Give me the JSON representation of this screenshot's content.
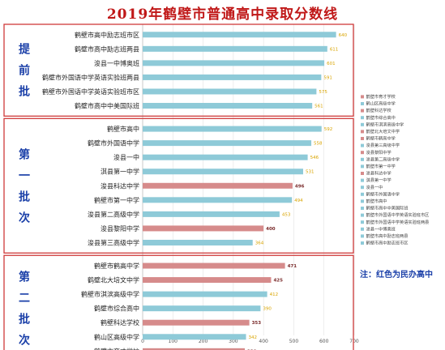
{
  "title": "2019年鹤壁市普通高中录取分数线",
  "note": "注：红色为民办高中",
  "colors": {
    "public": "#8ecad8",
    "private": "#d68b8b",
    "frame": "#d03a3a",
    "group_text": "#1a3fa8",
    "title": "#c01818"
  },
  "groups": [
    {
      "label": "提前批",
      "chars": [
        "提",
        "前",
        "批"
      ]
    },
    {
      "label": "第一批次",
      "chars": [
        "第",
        "一",
        "批",
        "次"
      ]
    },
    {
      "label": "第二批次",
      "chars": [
        "第",
        "二",
        "批",
        "次"
      ]
    }
  ],
  "chart_data": {
    "type": "bar",
    "orientation": "horizontal",
    "xlim": [
      0,
      700
    ],
    "xticks": [
      "0",
      "100",
      "200",
      "300",
      "400",
      "500",
      "600",
      "700"
    ],
    "bars": [
      {
        "group": 0,
        "category": "鹤壁市高中励志班市区",
        "value": 640,
        "private": false
      },
      {
        "group": 0,
        "category": "鹤壁市高中励志班两县",
        "value": 611,
        "private": false
      },
      {
        "group": 0,
        "category": "浚县一中博奥班",
        "value": 601,
        "private": false
      },
      {
        "group": 0,
        "category": "鹤壁市外国语中学英语实验班两县",
        "value": 591,
        "private": false
      },
      {
        "group": 0,
        "category": "鹤壁市外国语中学英语实验班市区",
        "value": 575,
        "private": false
      },
      {
        "group": 0,
        "category": "鹤壁市高中中美国际班",
        "value": 561,
        "private": false
      },
      {
        "group": 1,
        "category": "鹤壁市高中",
        "value": 592,
        "private": false
      },
      {
        "group": 1,
        "category": "鹤壁市外国语中学",
        "value": 558,
        "private": false
      },
      {
        "group": 1,
        "category": "浚县一中",
        "value": 546,
        "private": false
      },
      {
        "group": 1,
        "category": "淇县第一中学",
        "value": 531,
        "private": false
      },
      {
        "group": 1,
        "category": "浚县科达中学",
        "value": 496,
        "private": true
      },
      {
        "group": 1,
        "category": "鹤壁市第一中学",
        "value": 494,
        "private": false
      },
      {
        "group": 1,
        "category": "浚县第二高级中学",
        "value": 453,
        "private": false
      },
      {
        "group": 1,
        "category": "浚县黎阳中学",
        "value": 400,
        "private": true
      },
      {
        "group": 1,
        "category": "浚县第三高级中学",
        "value": 364,
        "private": false
      },
      {
        "group": 2,
        "category": "鹤壁市鹤高中学",
        "value": 471,
        "private": true
      },
      {
        "group": 2,
        "category": "鹤壁北大培文中学",
        "value": 425,
        "private": true
      },
      {
        "group": 2,
        "category": "鹤壁市淇滨高级中学",
        "value": 412,
        "private": false
      },
      {
        "group": 2,
        "category": "鹤壁市综合高中",
        "value": 390,
        "private": false
      },
      {
        "group": 2,
        "category": "鹤壁科达学校",
        "value": 353,
        "private": true
      },
      {
        "group": 2,
        "category": "鹤山区高级中学",
        "value": 342,
        "private": false
      },
      {
        "group": 2,
        "category": "鹤壁市育才学校",
        "value": 338,
        "private": true
      }
    ],
    "legend": [
      "鹤壁市育才学校",
      "鹤山区高级中学",
      "鹤壁科达学校",
      "鹤壁市综合高中",
      "鹤壁市淇滨高级中学",
      "鹤壁北大培文中学",
      "鹤壁市鹤高中学",
      "浚县第三高级中学",
      "浚县黎阳中学",
      "浚县第二高级中学",
      "鹤壁市第一中学",
      "浚县科达中学",
      "淇县第一中学",
      "浚县一中",
      "鹤壁市外国语中学",
      "鹤壁市高中",
      "鹤壁市高中中美国际班",
      "鹤壁市外国语中学英语实验班市区",
      "鹤壁市外国语中学英语实验班两县",
      "浚县一中博奥班",
      "鹤壁市高中励志班两县",
      "鹤壁市高中励志班市区"
    ]
  }
}
